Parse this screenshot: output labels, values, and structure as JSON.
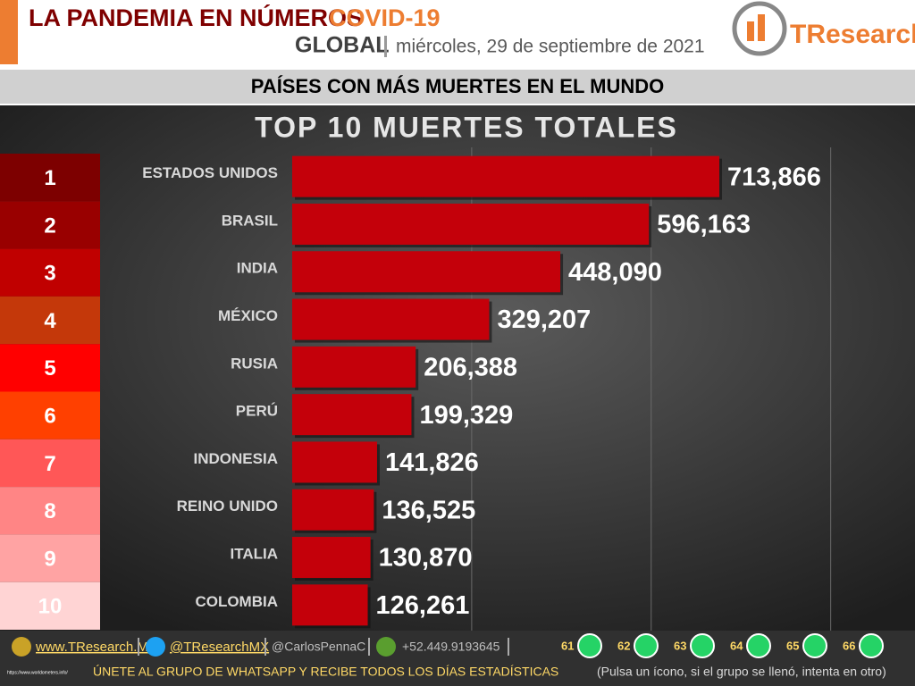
{
  "header": {
    "title": "LA PANDEMIA EN NÚMEROS",
    "topic": "COVID-19",
    "scope": "GLOBAL",
    "date": "miércoles, 29 de septiembre de 2021",
    "brand": "TResearch"
  },
  "section_title": "PAÍSES CON MÁS MUERTES EN EL MUNDO",
  "ranks": [
    {
      "label": "1",
      "color": "#7d0000"
    },
    {
      "label": "2",
      "color": "#990000"
    },
    {
      "label": "3",
      "color": "#c00000"
    },
    {
      "label": "4",
      "color": "#c4380a"
    },
    {
      "label": "5",
      "color": "#ff0000"
    },
    {
      "label": "6",
      "color": "#ff4000"
    },
    {
      "label": "7",
      "color": "#ff5757"
    },
    {
      "label": "8",
      "color": "#ff8585"
    },
    {
      "label": "9",
      "color": "#ffa3a3"
    },
    {
      "label": "10",
      "color": "#ffd4d4"
    }
  ],
  "chart_data": {
    "type": "bar",
    "orientation": "horizontal",
    "title": "TOP 10 MUERTES TOTALES",
    "categories": [
      "ESTADOS UNIDOS",
      "BRASIL",
      "INDIA",
      "MÉXICO",
      "RUSIA",
      "PERÚ",
      "INDONESIA",
      "REINO UNIDO",
      "ITALIA",
      "COLOMBIA"
    ],
    "values": [
      713866,
      596163,
      448090,
      329207,
      206388,
      199329,
      141826,
      136525,
      130870,
      126261
    ],
    "value_labels": [
      "713,866",
      "596,163",
      "448,090",
      "329,207",
      "206,388",
      "199,329",
      "141,826",
      "136,525",
      "130,870",
      "126,261"
    ],
    "color": "#c4000a",
    "xlim": [
      0,
      1020000
    ],
    "xticks": [
      300000,
      600000,
      900000
    ],
    "grid": true
  },
  "footer": {
    "website": "www.TResearch.Mx",
    "twitter": "@TResearchMX",
    "twitter2": "@CarlosPennaC",
    "phone": "+52.449.9193645",
    "groups": [
      "61",
      "62",
      "63",
      "64",
      "65",
      "66"
    ],
    "cta": "ÚNETE AL GRUPO DE WHATSAPP Y RECIBE TODOS LOS DÍAS ESTADÍSTICAS",
    "cta_note": "(Pulsa un ícono, si el grupo se llenó, intenta en otro)",
    "source": "https://www.worldometers.info/"
  }
}
